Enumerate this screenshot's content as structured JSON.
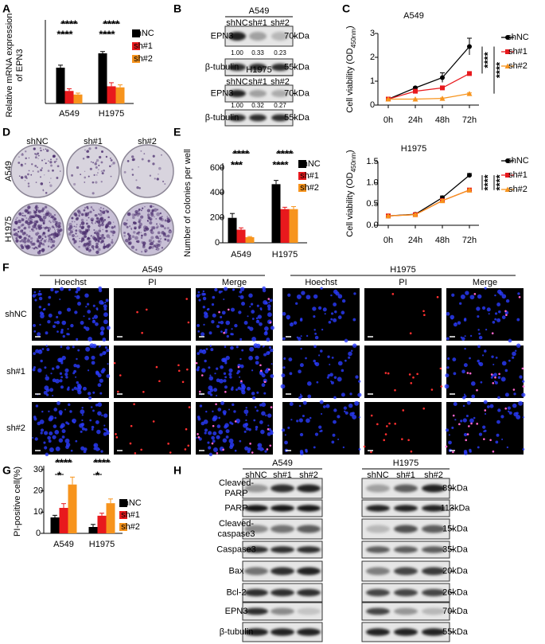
{
  "panel_labels": [
    "A",
    "B",
    "C",
    "D",
    "E",
    "F",
    "G",
    "H"
  ],
  "chart_data": [
    {
      "type": "bar",
      "ylabel": [
        "Relative mRNA expression",
        "of EPN3"
      ],
      "categories": [
        "A549",
        "H1975"
      ],
      "series": [
        {
          "name": "shNC",
          "color": "#000000",
          "values": [
            1.0,
            1.4
          ],
          "errors": [
            0.07,
            0.05
          ]
        },
        {
          "name": "sh#1",
          "color": "#e8191d",
          "values": [
            0.35,
            0.48
          ],
          "errors": [
            0.06,
            0.1
          ]
        },
        {
          "name": "sh#2",
          "color": "#f7941d",
          "values": [
            0.25,
            0.45
          ],
          "errors": [
            0.04,
            0.07
          ]
        }
      ],
      "ylim": [
        0,
        2
      ],
      "annotations": [
        "****",
        "****",
        "****",
        "****"
      ]
    },
    {
      "type": "line",
      "title": "A549",
      "ylabel": [
        "Cell viability (OD",
        "450nm",
        ")"
      ],
      "categories": [
        "0h",
        "24h",
        "48h",
        "72h"
      ],
      "series": [
        {
          "name": "shNC",
          "color": "#000000",
          "values": [
            0.25,
            0.72,
            1.15,
            2.45
          ],
          "errors": [
            0.02,
            0.04,
            0.2,
            0.35
          ]
        },
        {
          "name": "sh#1",
          "color": "#e8191d",
          "values": [
            0.25,
            0.58,
            0.72,
            1.32
          ],
          "errors": [
            0.02,
            0.03,
            0.08,
            0.08
          ]
        },
        {
          "name": "sh#2",
          "color": "#f7941d",
          "values": [
            0.25,
            0.25,
            0.28,
            0.48
          ],
          "errors": [
            0.01,
            0.01,
            0.02,
            0.03
          ]
        }
      ],
      "ylim": [
        0,
        3
      ],
      "yticks": [
        0,
        1,
        2,
        3
      ],
      "annotations": [
        "****",
        "****"
      ]
    },
    {
      "type": "line",
      "title": "H1975",
      "ylabel": [
        "Cell viability (OD",
        "450nm",
        ")"
      ],
      "categories": [
        "0h",
        "24h",
        "48h",
        "72h"
      ],
      "series": [
        {
          "name": "shNC",
          "color": "#000000",
          "values": [
            0.22,
            0.26,
            0.65,
            1.18
          ],
          "errors": [
            0.01,
            0.01,
            0.04,
            0.04
          ]
        },
        {
          "name": "sh#1",
          "color": "#e8191d",
          "values": [
            0.22,
            0.25,
            0.58,
            0.83
          ],
          "errors": [
            0.01,
            0.01,
            0.03,
            0.02
          ]
        },
        {
          "name": "sh#2",
          "color": "#f7941d",
          "values": [
            0.22,
            0.25,
            0.58,
            0.83
          ],
          "errors": [
            0.01,
            0.01,
            0.03,
            0.02
          ]
        }
      ],
      "ylim": [
        0,
        1.5
      ],
      "yticks": [
        {
          "value": 0,
          "label": "0.0"
        },
        0.5,
        {
          "value": 1,
          "label": "1.0"
        },
        1.5
      ],
      "annotations": [
        "****",
        "****"
      ]
    },
    {
      "type": "bar",
      "ylabel": [
        "Number of colonies per well"
      ],
      "categories": [
        "A549",
        "H1975"
      ],
      "series": [
        {
          "name": "shNC",
          "color": "#000000",
          "values": [
            200,
            470
          ],
          "errors": [
            35,
            30
          ]
        },
        {
          "name": "sh#1",
          "color": "#e8191d",
          "values": [
            105,
            270
          ],
          "errors": [
            15,
            15
          ]
        },
        {
          "name": "sh#2",
          "color": "#f7941d",
          "values": [
            45,
            270
          ],
          "errors": [
            5,
            20
          ]
        }
      ],
      "ylim": [
        0,
        600
      ],
      "yticks": [
        0,
        200,
        400,
        600
      ],
      "annotations": [
        "****",
        "***",
        "****",
        "****"
      ]
    },
    {
      "type": "bar",
      "ylabel": [
        "PI-positive cell(%)"
      ],
      "categories": [
        "A549",
        "H1975"
      ],
      "series": [
        {
          "name": "shNC",
          "color": "#000000",
          "values": [
            7.5,
            3
          ],
          "errors": [
            1,
            1.2
          ]
        },
        {
          "name": "sh#1",
          "color": "#e8191d",
          "values": [
            12,
            8.3
          ],
          "errors": [
            2,
            1.2
          ]
        },
        {
          "name": "sh#2",
          "color": "#f7941d",
          "values": [
            23,
            14.2
          ],
          "errors": [
            3.5,
            2
          ]
        }
      ],
      "ylim": [
        0,
        30
      ],
      "yticks": [
        0,
        10,
        20,
        30
      ],
      "annotations": [
        "****",
        "*",
        "****",
        "*"
      ]
    }
  ],
  "blot_b": {
    "cell_lines": [
      {
        "name": "A549",
        "lanes": [
          "shNC",
          "sh#1",
          "sh#2"
        ],
        "rows": [
          {
            "label": "EPN3",
            "size": "70kDa"
          },
          {
            "label": "β-tubulin",
            "size": "55kDa"
          }
        ],
        "quant": [
          "1.00",
          "0.33",
          "0.23"
        ]
      },
      {
        "name": "H1975",
        "lanes": [
          "shNC",
          "sh#1",
          "sh#2"
        ],
        "rows": [
          {
            "label": "EPN3",
            "size": "70kDa"
          },
          {
            "label": "β-tubulin",
            "size": "55kDa"
          }
        ],
        "quant": [
          "1.00",
          "0.32",
          "0.27"
        ]
      }
    ]
  },
  "colony_d": {
    "columns": [
      "shNC",
      "sh#1",
      "sh#2"
    ],
    "rows": [
      "A549",
      "H1975"
    ]
  },
  "staining_f": {
    "groups": [
      {
        "name": "A549",
        "channels": [
          "Hoechst",
          "PI",
          "Merge"
        ]
      },
      {
        "name": "H1975",
        "channels": [
          "Hoechst",
          "PI",
          "Merge"
        ]
      }
    ],
    "rows": [
      "shNC",
      "sh#1",
      "sh#2"
    ]
  },
  "blot_h": {
    "cell_lines": [
      {
        "name": "A549",
        "lanes": [
          "shNC",
          "sh#1",
          "sh#2"
        ]
      },
      {
        "name": "H1975",
        "lanes": [
          "shNC",
          "sh#1",
          "sh#2"
        ]
      }
    ],
    "rows": [
      {
        "label": [
          "Cleaved-",
          "PARP"
        ],
        "size": "89kDa"
      },
      {
        "label": [
          "PARP"
        ],
        "size": "113kDa"
      },
      {
        "label": [
          "Cleaved-",
          "caspase3"
        ],
        "size": "15kDa"
      },
      {
        "label": [
          "Caspase3"
        ],
        "size": "35kDa"
      },
      {
        "label": [
          "Bax"
        ],
        "size": "20kDa"
      },
      {
        "label": [
          "Bcl-2"
        ],
        "size": "26kDa"
      },
      {
        "label": [
          "EPN3"
        ],
        "size": "70kDa"
      },
      {
        "label": [
          "β-tubulin"
        ],
        "size": "55kDa"
      }
    ]
  }
}
